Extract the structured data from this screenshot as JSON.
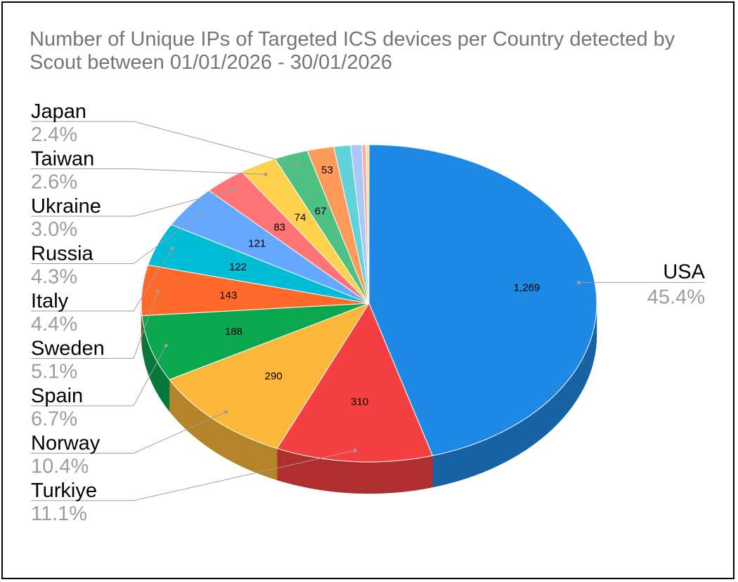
{
  "chart_data": {
    "type": "pie",
    "title": "Number of Unique IPs of Targeted ICS devices per Country detected by Scout between 01/01/2026 - 30/01/2026",
    "slices": [
      {
        "label": "USA",
        "value": 1269,
        "value_label": "1,269",
        "percent": "45.4%",
        "color": "#1e88e5"
      },
      {
        "label": "Turkiye",
        "value": 310,
        "value_label": "310",
        "percent": "11.1%",
        "color": "#f44040"
      },
      {
        "label": "Norway",
        "value": 290,
        "value_label": "290",
        "percent": "10.4%",
        "color": "#fbb73a"
      },
      {
        "label": "Spain",
        "value": 188,
        "value_label": "188",
        "percent": "6.7%",
        "color": "#0aa650"
      },
      {
        "label": "Sweden",
        "value": 143,
        "value_label": "143",
        "percent": "5.1%",
        "color": "#ff6a2a"
      },
      {
        "label": "Italy",
        "value": 122,
        "value_label": "122",
        "percent": "4.4%",
        "color": "#00bcd4"
      },
      {
        "label": "Russia",
        "value": 121,
        "value_label": "121",
        "percent": "4.3%",
        "color": "#64a8ff"
      },
      {
        "label": "Ukraine",
        "value": 83,
        "value_label": "83",
        "percent": "3.0%",
        "color": "#ff7575"
      },
      {
        "label": "Taiwan",
        "value": 74,
        "value_label": "74",
        "percent": "2.6%",
        "color": "#ffd24d"
      },
      {
        "label": "Japan",
        "value": 67,
        "value_label": "67",
        "percent": "2.4%",
        "color": "#4fc183"
      },
      {
        "label": "",
        "value": 53,
        "value_label": "53",
        "percent": "",
        "color": "#ff9a5a"
      },
      {
        "label": "",
        "value": 33,
        "value_label": "",
        "percent": "",
        "color": "#5fd3d8"
      },
      {
        "label": "",
        "value": 22,
        "value_label": "",
        "percent": "",
        "color": "#a9c8f5"
      },
      {
        "label": "",
        "value": 8,
        "value_label": "",
        "percent": "",
        "color": "#f6a9a9"
      },
      {
        "label": "",
        "value": 6,
        "value_label": "",
        "percent": "",
        "color": "#ffe08a"
      }
    ],
    "style": "3d",
    "legend": "none"
  }
}
